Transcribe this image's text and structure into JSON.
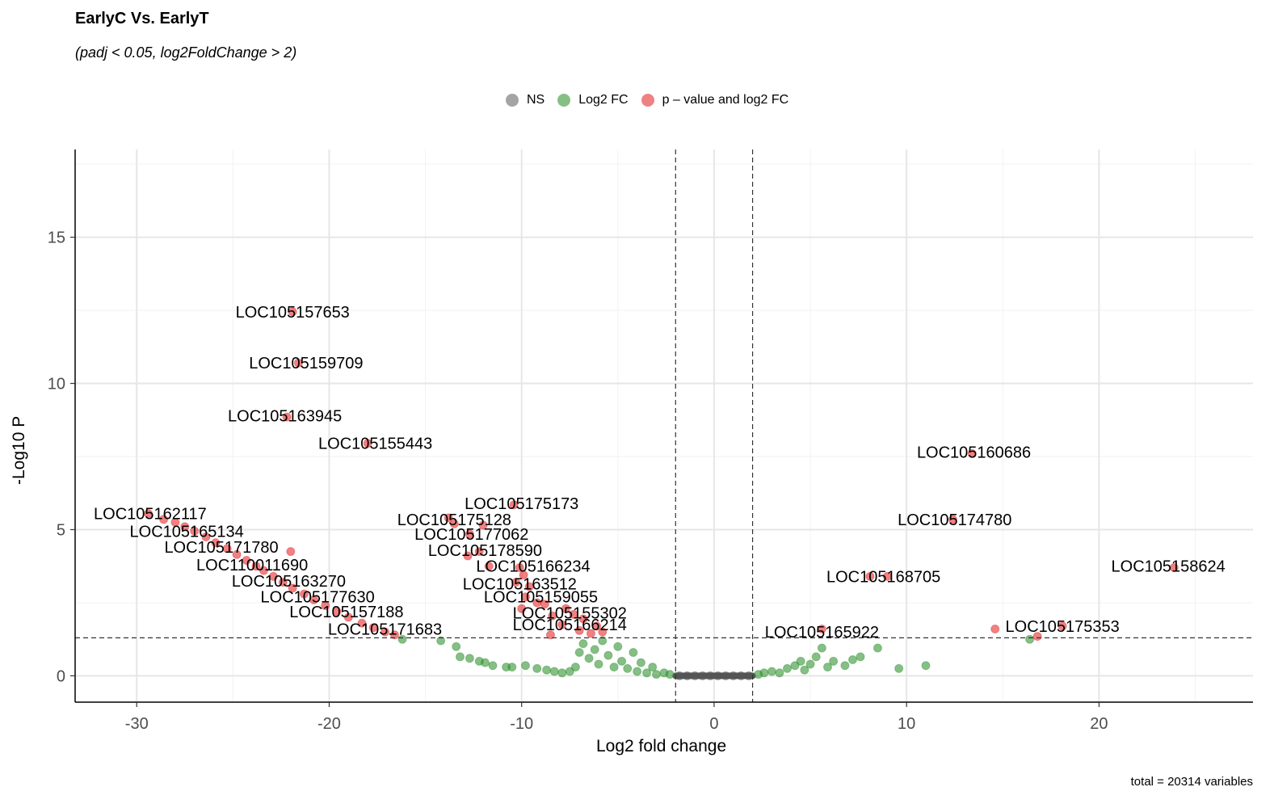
{
  "chart_data": {
    "type": "scatter",
    "title": "EarlyC Vs. EarlyT",
    "subtitle": "(padj < 0.05, log2FoldChange > 2)",
    "xlabel": "Log2 fold change",
    "ylabel": "-Log10 P",
    "caption": "total = 20314 variables",
    "xlim": [
      -33.2,
      28
    ],
    "ylim": [
      -0.9,
      18
    ],
    "x_ticks": [
      -30,
      -20,
      -10,
      0,
      10,
      20
    ],
    "y_ticks": [
      0,
      5,
      10,
      15
    ],
    "grid": true,
    "legend_position": "top",
    "thresholds": {
      "log2fc": [
        -2,
        2
      ],
      "neg_log10_p": 1.3
    },
    "legend": [
      {
        "name": "NS",
        "color": "#5a5a5a"
      },
      {
        "name": "Log2 FC",
        "color": "#228b22"
      },
      {
        "name": "p – value and log2 FC",
        "color": "#e31a1c"
      }
    ],
    "series": [
      {
        "name": "NS",
        "color": "#555555",
        "points": [
          [
            -1.8,
            0
          ],
          [
            -1.4,
            0
          ],
          [
            -1.0,
            0
          ],
          [
            -0.6,
            0
          ],
          [
            -0.2,
            0
          ],
          [
            0.2,
            0
          ],
          [
            0.6,
            0
          ],
          [
            1.0,
            0
          ],
          [
            1.4,
            0
          ],
          [
            1.8,
            0
          ]
        ]
      },
      {
        "name": "Log2 FC",
        "color": "#228b22",
        "points": [
          [
            -16.2,
            1.25
          ],
          [
            -14.2,
            1.2
          ],
          [
            -13.4,
            1.0
          ],
          [
            -13.2,
            0.65
          ],
          [
            -12.7,
            0.6
          ],
          [
            -12.2,
            0.5
          ],
          [
            -11.9,
            0.45
          ],
          [
            -11.5,
            0.35
          ],
          [
            -10.8,
            0.3
          ],
          [
            -10.5,
            0.3
          ],
          [
            -9.8,
            0.35
          ],
          [
            -9.2,
            0.25
          ],
          [
            -8.7,
            0.2
          ],
          [
            -8.3,
            0.15
          ],
          [
            -7.9,
            0.1
          ],
          [
            -7.5,
            0.15
          ],
          [
            -7.2,
            0.3
          ],
          [
            -7.0,
            0.8
          ],
          [
            -6.8,
            1.1
          ],
          [
            -6.5,
            0.6
          ],
          [
            -6.2,
            0.9
          ],
          [
            -6.0,
            0.4
          ],
          [
            -5.8,
            1.2
          ],
          [
            -5.5,
            0.7
          ],
          [
            -5.2,
            0.3
          ],
          [
            -5.0,
            1.0
          ],
          [
            -4.8,
            0.5
          ],
          [
            -4.5,
            0.25
          ],
          [
            -4.2,
            0.8
          ],
          [
            -4.0,
            0.15
          ],
          [
            -3.8,
            0.45
          ],
          [
            -3.5,
            0.1
          ],
          [
            -3.2,
            0.3
          ],
          [
            -3.0,
            0.05
          ],
          [
            -2.6,
            0.1
          ],
          [
            -2.3,
            0.05
          ],
          [
            2.3,
            0.05
          ],
          [
            2.6,
            0.1
          ],
          [
            3.0,
            0.15
          ],
          [
            3.4,
            0.1
          ],
          [
            3.8,
            0.25
          ],
          [
            4.2,
            0.35
          ],
          [
            4.5,
            0.5
          ],
          [
            4.7,
            0.2
          ],
          [
            5.0,
            0.4
          ],
          [
            5.3,
            0.65
          ],
          [
            5.6,
            0.95
          ],
          [
            5.9,
            0.3
          ],
          [
            6.2,
            0.5
          ],
          [
            6.8,
            0.35
          ],
          [
            7.2,
            0.55
          ],
          [
            7.6,
            0.65
          ],
          [
            8.5,
            0.95
          ],
          [
            9.6,
            0.25
          ],
          [
            11.0,
            0.35
          ],
          [
            16.4,
            1.25
          ]
        ]
      },
      {
        "name": "p – value and log2 FC",
        "color": "#e31a1c",
        "points": [
          [
            -21.9,
            12.45
          ],
          [
            -21.6,
            10.7
          ],
          [
            -22.2,
            8.85
          ],
          [
            -18.0,
            7.95
          ],
          [
            -10.4,
            5.85
          ],
          [
            -12.0,
            5.15
          ],
          [
            -12.7,
            4.85
          ],
          [
            -12.2,
            4.25
          ],
          [
            -12.8,
            4.1
          ],
          [
            -11.7,
            3.75
          ],
          [
            -10.1,
            3.7
          ],
          [
            -9.9,
            3.45
          ],
          [
            -10.3,
            3.2
          ],
          [
            -9.6,
            3.05
          ],
          [
            -9.8,
            2.7
          ],
          [
            -9.2,
            2.5
          ],
          [
            -10.0,
            2.3
          ],
          [
            -8.8,
            2.45
          ],
          [
            -7.7,
            2.3
          ],
          [
            -8.4,
            2.05
          ],
          [
            -7.3,
            2.1
          ],
          [
            -7.9,
            1.75
          ],
          [
            -6.8,
            1.95
          ],
          [
            -6.1,
            1.7
          ],
          [
            -7.0,
            1.55
          ],
          [
            -6.4,
            1.45
          ],
          [
            -5.8,
            1.5
          ],
          [
            -8.5,
            1.4
          ],
          [
            -13.8,
            5.4
          ],
          [
            -13.5,
            5.2
          ],
          [
            -29.4,
            5.55
          ],
          [
            -28.6,
            5.35
          ],
          [
            -28.0,
            5.25
          ],
          [
            -27.5,
            5.1
          ],
          [
            -27.0,
            4.95
          ],
          [
            -26.4,
            4.75
          ],
          [
            -25.9,
            4.55
          ],
          [
            -25.3,
            4.35
          ],
          [
            -24.8,
            4.15
          ],
          [
            -24.3,
            3.95
          ],
          [
            -23.8,
            3.75
          ],
          [
            -23.4,
            3.6
          ],
          [
            -22.9,
            3.4
          ],
          [
            -22.4,
            3.2
          ],
          [
            -21.9,
            3.0
          ],
          [
            -21.3,
            2.8
          ],
          [
            -20.8,
            2.6
          ],
          [
            -20.2,
            2.4
          ],
          [
            -19.6,
            2.2
          ],
          [
            -19.0,
            2.0
          ],
          [
            -18.3,
            1.8
          ],
          [
            -17.7,
            1.65
          ],
          [
            -17.1,
            1.5
          ],
          [
            -16.6,
            1.4
          ],
          [
            -22.0,
            4.25
          ],
          [
            13.4,
            7.6
          ],
          [
            12.4,
            5.35
          ],
          [
            9.0,
            3.4
          ],
          [
            8.1,
            3.4
          ],
          [
            23.9,
            3.7
          ],
          [
            5.6,
            1.6
          ],
          [
            18.1,
            1.7
          ],
          [
            14.6,
            1.6
          ],
          [
            16.8,
            1.35
          ]
        ]
      }
    ],
    "labels": [
      {
        "text": "LOC105157653",
        "x": -21.9,
        "y": 12.45,
        "anchor": "middle"
      },
      {
        "text": "LOC105159709",
        "x": -21.2,
        "y": 10.7,
        "anchor": "middle"
      },
      {
        "text": "LOC105163945",
        "x": -22.3,
        "y": 8.9,
        "anchor": "middle"
      },
      {
        "text": "LOC105155443",
        "x": -17.6,
        "y": 7.95,
        "anchor": "middle"
      },
      {
        "text": "LOC105160686",
        "x": 13.5,
        "y": 7.65,
        "anchor": "middle"
      },
      {
        "text": "LOC105175173",
        "x": -10.0,
        "y": 5.9,
        "anchor": "middle"
      },
      {
        "text": "LOC105162117",
        "x": -29.3,
        "y": 5.55,
        "anchor": "middle"
      },
      {
        "text": "LOC105175128",
        "x": -13.5,
        "y": 5.35,
        "anchor": "middle"
      },
      {
        "text": "LOC105174780",
        "x": 12.5,
        "y": 5.35,
        "anchor": "middle"
      },
      {
        "text": "LOC105165134",
        "x": -27.4,
        "y": 4.95,
        "anchor": "middle"
      },
      {
        "text": "LOC105177062",
        "x": -12.6,
        "y": 4.85,
        "anchor": "middle"
      },
      {
        "text": "LOC105171780",
        "x": -25.6,
        "y": 4.4,
        "anchor": "middle"
      },
      {
        "text": "LOC105178590",
        "x": -11.9,
        "y": 4.3,
        "anchor": "middle"
      },
      {
        "text": "LOC110011690",
        "x": -24.0,
        "y": 3.8,
        "anchor": "middle"
      },
      {
        "text": "LOC105166234",
        "x": -9.4,
        "y": 3.75,
        "anchor": "middle"
      },
      {
        "text": "LOC105158624",
        "x": 23.6,
        "y": 3.75,
        "anchor": "middle"
      },
      {
        "text": "LOC105168705",
        "x": 8.8,
        "y": 3.4,
        "anchor": "middle"
      },
      {
        "text": "LOC105163270",
        "x": -22.1,
        "y": 3.25,
        "anchor": "middle"
      },
      {
        "text": "LOC105163512",
        "x": -10.1,
        "y": 3.15,
        "anchor": "middle"
      },
      {
        "text": "LOC105177630",
        "x": -20.6,
        "y": 2.7,
        "anchor": "middle"
      },
      {
        "text": "LOC105159055",
        "x": -9.0,
        "y": 2.7,
        "anchor": "middle"
      },
      {
        "text": "LOC105157188",
        "x": -19.1,
        "y": 2.2,
        "anchor": "middle"
      },
      {
        "text": "LOC105155302",
        "x": -7.5,
        "y": 2.15,
        "anchor": "middle"
      },
      {
        "text": "LOC105166214",
        "x": -7.5,
        "y": 1.75,
        "anchor": "middle"
      },
      {
        "text": "LOC105175353",
        "x": 18.1,
        "y": 1.7,
        "anchor": "middle"
      },
      {
        "text": "LOC105171683",
        "x": -17.1,
        "y": 1.6,
        "anchor": "middle"
      },
      {
        "text": "LOC105165922",
        "x": 5.6,
        "y": 1.5,
        "anchor": "middle"
      }
    ]
  }
}
